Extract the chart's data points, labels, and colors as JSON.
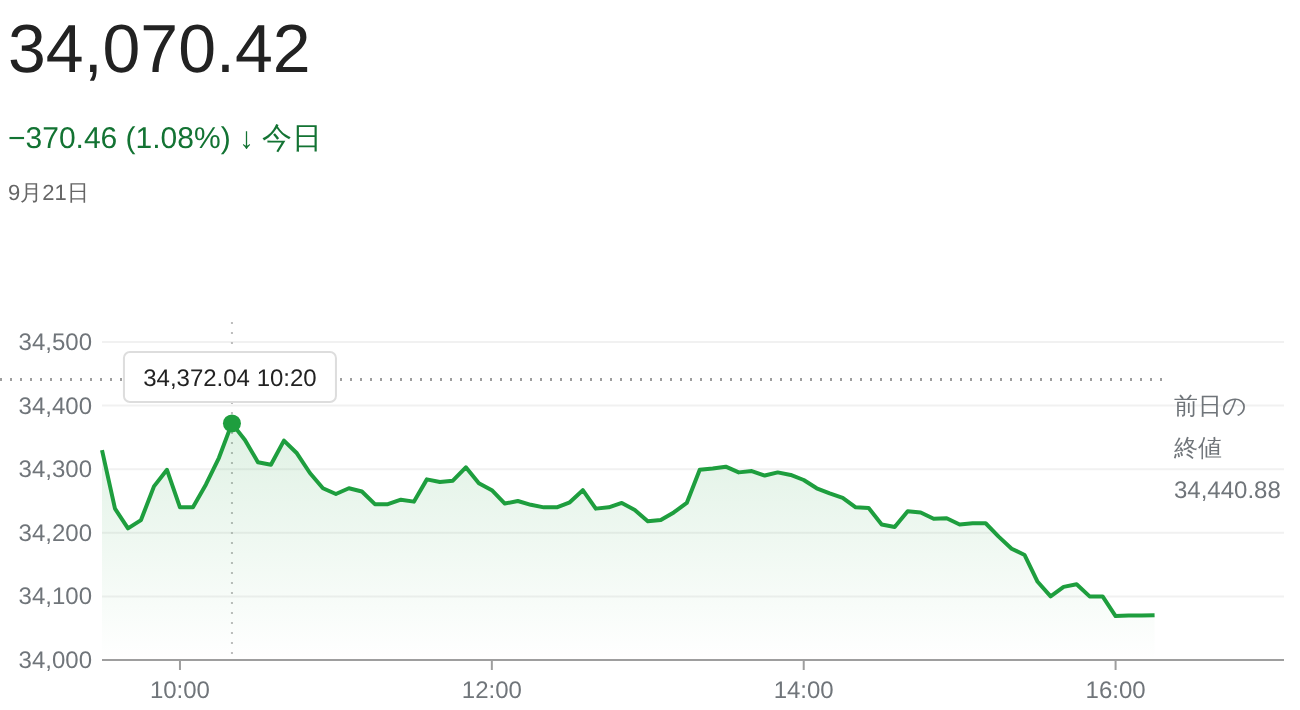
{
  "chart_data": {
    "type": "area",
    "title": "34,070.42",
    "subtitle": "−370.46 (1.08%) ↓ 今日",
    "annotations": [
      "9月21日",
      {
        "text": "34,372.04  10:20",
        "x": 10.3333,
        "y": 34372.04
      }
    ],
    "series": [
      {
        "color": "#1e9e3e",
        "x": [
          9.5,
          9.5833,
          9.6667,
          9.75,
          9.8333,
          9.9167,
          10,
          10.0833,
          10.1667,
          10.25,
          10.3333,
          10.4167,
          10.5,
          10.5833,
          10.6667,
          10.75,
          10.8333,
          10.9167,
          11,
          11.0833,
          11.1667,
          11.25,
          11.3333,
          11.4167,
          11.5,
          11.5833,
          11.6667,
          11.75,
          11.8333,
          11.9167,
          12,
          12.0833,
          12.1667,
          12.25,
          12.3333,
          12.4167,
          12.5,
          12.5833,
          12.6667,
          12.75,
          12.8333,
          12.9167,
          13,
          13.0833,
          13.1667,
          13.25,
          13.3333,
          13.4167,
          13.5,
          13.5833,
          13.6667,
          13.75,
          13.8333,
          13.9167,
          14,
          14.0833,
          14.1667,
          14.25,
          14.3333,
          14.4167,
          14.5,
          14.5833,
          14.6667,
          14.75,
          14.8333,
          14.9167,
          15,
          15.0833,
          15.1667,
          15.25,
          15.3333,
          15.4167,
          15.5,
          15.5833,
          15.6667,
          15.75,
          15.8333,
          15.9167,
          16,
          16.0833,
          16.1667,
          16.25
        ],
        "values": [
          34330,
          34238,
          34207,
          34220,
          34273,
          34299,
          34240,
          34240,
          34276,
          34318,
          34372.04,
          34346,
          34311,
          34307,
          34345,
          34325,
          34294,
          34270,
          34261,
          34270,
          34265,
          34245,
          34245,
          34252,
          34249,
          34284,
          34280,
          34282,
          34303,
          34278,
          34267,
          34246,
          34250,
          34244,
          34240,
          34240,
          34248,
          34267,
          34238,
          34240,
          34247,
          34236,
          34218,
          34220,
          34232,
          34247,
          34299,
          34301,
          34304,
          34295,
          34297,
          34290,
          34295,
          34291,
          34283,
          34270,
          34262,
          34255,
          34240,
          34239,
          34213,
          34209,
          34234,
          34232,
          34222,
          34223,
          34213,
          34215,
          34215,
          34194,
          34175,
          34165,
          34123,
          34100,
          34115,
          34119,
          34100,
          34100,
          34069,
          34070,
          34070,
          34070.42
        ]
      }
    ],
    "xlim": [
      9.5,
      17.08
    ],
    "xticks": [
      {
        "value": 10,
        "label": "10:00"
      },
      {
        "value": 12,
        "label": "12:00"
      },
      {
        "value": 14,
        "label": "14:00"
      },
      {
        "value": 16,
        "label": "16:00"
      }
    ],
    "ylim": [
      34000,
      34500
    ],
    "yticks": [
      {
        "value": 34000,
        "label": "34,000"
      },
      {
        "value": 34100,
        "label": "34,100"
      },
      {
        "value": 34200,
        "label": "34,200"
      },
      {
        "value": 34300,
        "label": "34,300"
      },
      {
        "value": 34400,
        "label": "34,400"
      },
      {
        "value": 34500,
        "label": "34,500"
      }
    ],
    "ref_lines": [
      {
        "axis": "y",
        "value": 34440.88,
        "label": "前日の終値\n34,440.88",
        "color": "#9e9e9e",
        "line_style": "dotted"
      },
      {
        "axis": "x",
        "value": 10.3333,
        "color": "#bdbdbd",
        "line_style": "dotted"
      }
    ],
    "grid": "y",
    "marker": "none",
    "line_style": "solid"
  }
}
